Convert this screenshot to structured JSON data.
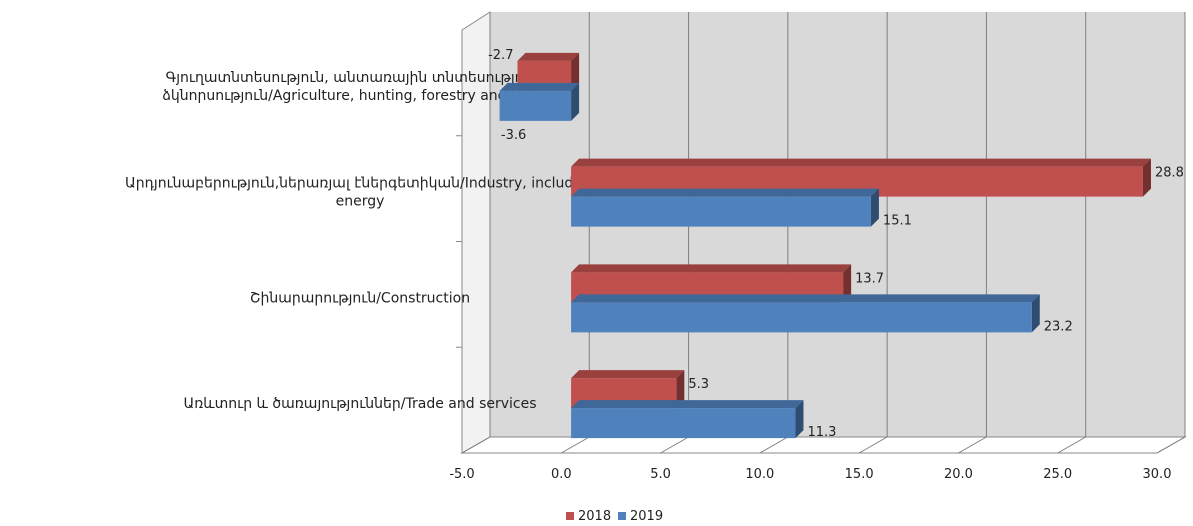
{
  "chart_data": {
    "type": "bar",
    "orientation": "horizontal",
    "style": "3d-clustered",
    "categories": [
      [
        "Գյուղատնտեսություն,  անտառային  տնտեսություն  և",
        "ձկնորսություն/Agriculture,  hunting, forestry and fishing"
      ],
      [
        "Արդյունաբերություն,ներառյալ   էներգետիկան/Industry,  including",
        "energy"
      ],
      [
        "Շինարարություն/Construction"
      ],
      [
        "Առևտուր  և ծառայություններ/Trade  and services"
      ]
    ],
    "series": [
      {
        "name": "2018",
        "color": "#c0504d",
        "values": [
          -2.7,
          28.8,
          13.7,
          5.3
        ],
        "labels": [
          "-2.7",
          "28.8",
          "13.7",
          "5.3"
        ]
      },
      {
        "name": "2019",
        "color": "#4f81bd",
        "values": [
          -3.6,
          15.1,
          23.2,
          11.3
        ],
        "labels": [
          "-3.6",
          "15.1",
          "23.2",
          "11.3"
        ]
      }
    ],
    "xlim": [
      -5,
      30
    ],
    "xticks": [
      "-5.0",
      "0.0",
      "5.0",
      "10.0",
      "15.0",
      "20.0",
      "25.0",
      "30.0"
    ],
    "grid": true,
    "legend_position": "bottom",
    "title": "",
    "xlabel": "",
    "ylabel": ""
  }
}
